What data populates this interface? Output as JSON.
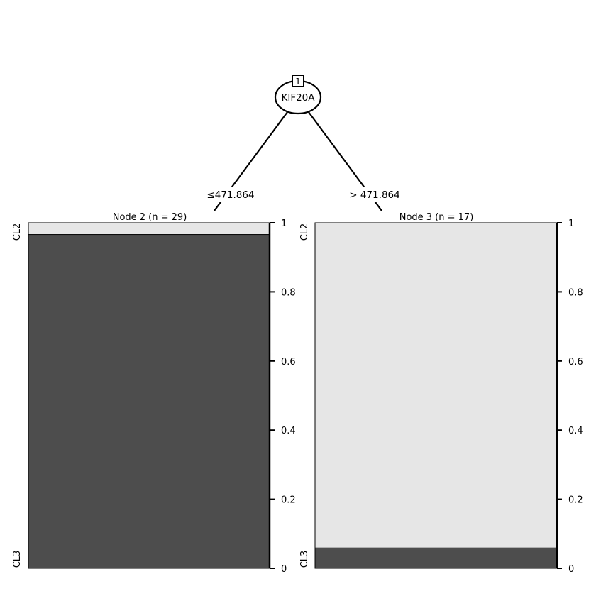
{
  "tree": {
    "root": {
      "id": "1",
      "variable": "KIF20A"
    },
    "edges": [
      {
        "label": "≤471.864"
      },
      {
        "label": "> 471.864"
      }
    ],
    "terminals": [
      {
        "title": "Node 2 (n = 29)",
        "proportions": {
          "CL2": 0.034,
          "CL3": 0.966
        }
      },
      {
        "title": "Node 3 (n = 17)",
        "proportions": {
          "CL2": 0.941,
          "CL3": 0.059
        }
      }
    ],
    "class_labels": {
      "top": "CL2",
      "bottom": "CL3"
    },
    "axis_ticks": [
      "0",
      "0.2",
      "0.4",
      "0.6",
      "0.8",
      "1"
    ],
    "colors": {
      "CL2": "#e6e6e6",
      "CL3": "#4d4d4d",
      "line": "#000000"
    }
  }
}
